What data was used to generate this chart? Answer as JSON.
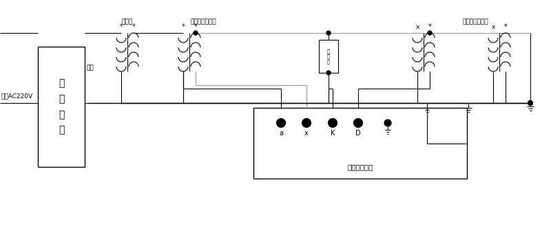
{
  "bg_color": "#ffffff",
  "line_color": "#000000",
  "gray_color": "#999999",
  "labels": {
    "input": "输入AC220V",
    "output": "输出",
    "regulator": "调\n压\n系\n统",
    "booster": "升压器",
    "std_vt": "标准电压互感器",
    "test_vt": "被检电压互感器",
    "divider_label": "分压器",
    "calibrator": "互感器校验件",
    "a_label": "a",
    "x_label": "x",
    "k_label": "K",
    "d_label": "D"
  },
  "figsize": [
    8.0,
    3.48
  ],
  "dpi": 100
}
